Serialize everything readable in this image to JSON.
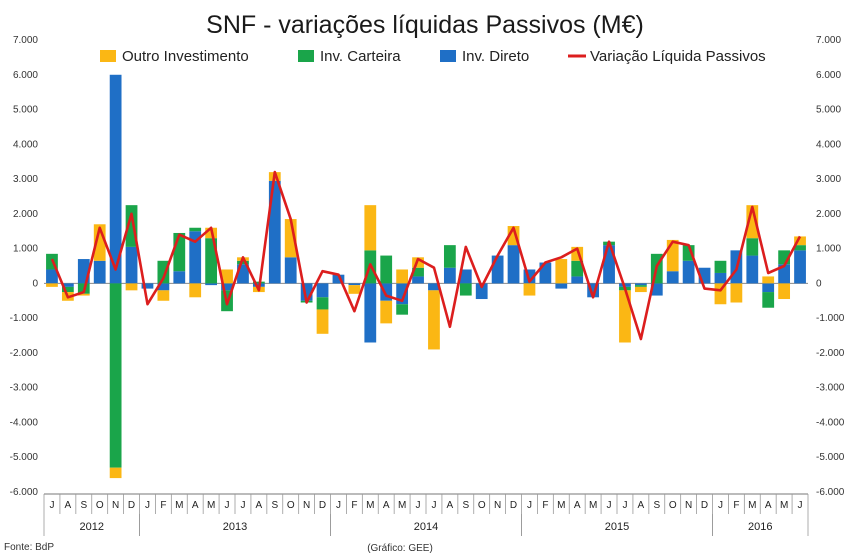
{
  "chart_data": {
    "type": "bar",
    "stacked": true,
    "title": "SNF - variações líquidas Passivos (M€)",
    "ylim": [
      -6000,
      7000
    ],
    "yticks": [
      7000,
      6000,
      5000,
      4000,
      3000,
      2000,
      1000,
      0,
      -1000,
      -2000,
      -3000,
      -4000,
      -5000,
      -6000
    ],
    "ytick_labels": [
      "7.000",
      "6.000",
      "5.000",
      "4.000",
      "3.000",
      "2.000",
      "1.000",
      "0",
      "-1.000",
      "-2.000",
      "-3.000",
      "-4.000",
      "-5.000",
      "-6.000"
    ],
    "categories": [
      "J",
      "A",
      "S",
      "O",
      "N",
      "D",
      "J",
      "F",
      "M",
      "A",
      "M",
      "J",
      "J",
      "A",
      "S",
      "O",
      "N",
      "D",
      "J",
      "F",
      "M",
      "A",
      "M",
      "J",
      "J",
      "A",
      "S",
      "O",
      "N",
      "D",
      "J",
      "F",
      "M",
      "A",
      "M",
      "J",
      "J",
      "A",
      "S",
      "O",
      "N",
      "D",
      "J",
      "F",
      "M",
      "A",
      "M",
      "J"
    ],
    "years": [
      {
        "label": "2012",
        "start": 0,
        "end": 5
      },
      {
        "label": "2013",
        "start": 6,
        "end": 17
      },
      {
        "label": "2014",
        "start": 18,
        "end": 29
      },
      {
        "label": "2015",
        "start": 30,
        "end": 41
      },
      {
        "label": "2016",
        "start": 42,
        "end": 47
      }
    ],
    "series": [
      {
        "name": "Inv. Direto",
        "kind": "bar",
        "color": "#1f6fc6",
        "values": [
          400,
          -100,
          700,
          650,
          6000,
          1050,
          -150,
          -200,
          350,
          1500,
          -50,
          -200,
          550,
          -100,
          2950,
          750,
          -500,
          -400,
          250,
          -50,
          -1700,
          -500,
          -600,
          200,
          -200,
          450,
          400,
          -450,
          800,
          1100,
          400,
          600,
          -150,
          200,
          -400,
          1100,
          -100,
          -50,
          -350,
          350,
          650,
          450,
          300,
          950,
          800,
          -250,
          550,
          950
        ]
      },
      {
        "name": "Inv. Carteira",
        "kind": "bar",
        "color": "#1aa54a",
        "values": [
          450,
          -150,
          -300,
          0,
          -5300,
          1200,
          0,
          650,
          1100,
          100,
          1300,
          -600,
          100,
          50,
          0,
          0,
          -50,
          -350,
          0,
          0,
          950,
          800,
          -300,
          250,
          0,
          650,
          -350,
          0,
          0,
          0,
          0,
          0,
          0,
          450,
          0,
          100,
          -100,
          -50,
          850,
          0,
          450,
          0,
          350,
          0,
          500,
          -450,
          400,
          150
        ]
      },
      {
        "name": "Outro Investimento",
        "kind": "bar",
        "color": "#fbb714",
        "values": [
          -100,
          -250,
          -50,
          1050,
          -300,
          -200,
          0,
          -300,
          0,
          -400,
          300,
          400,
          100,
          -150,
          250,
          1100,
          0,
          -700,
          0,
          -250,
          1300,
          -650,
          400,
          300,
          -1700,
          0,
          0,
          0,
          0,
          550,
          -350,
          0,
          700,
          400,
          0,
          0,
          -1500,
          -150,
          0,
          900,
          0,
          0,
          -600,
          -550,
          950,
          200,
          -450,
          250
        ]
      },
      {
        "name": "Variação Líquida Passivos",
        "kind": "line",
        "color": "#dc1e1e",
        "values": [
          700,
          -400,
          -250,
          1600,
          400,
          2000,
          -600,
          150,
          1400,
          1200,
          1600,
          -600,
          750,
          -200,
          3200,
          1850,
          -550,
          350,
          250,
          -800,
          550,
          -350,
          -500,
          700,
          450,
          -1250,
          1050,
          -100,
          800,
          1600,
          50,
          600,
          750,
          1000,
          -400,
          1200,
          -150,
          -1600,
          500,
          1200,
          1100,
          -150,
          -200,
          400,
          2200,
          300,
          500,
          1350
        ]
      }
    ]
  },
  "legend": [
    {
      "label": "Outro Investimento",
      "color": "#fbb714",
      "marker": "box"
    },
    {
      "label": "Inv. Carteira",
      "color": "#1aa54a",
      "marker": "box"
    },
    {
      "label": "Inv. Direto",
      "color": "#1f6fc6",
      "marker": "box"
    },
    {
      "label": "Variação Líquida Passivos",
      "color": "#dc1e1e",
      "marker": "line"
    }
  ],
  "footer": {
    "source": "Fonte: BdP",
    "credit": "(Gráfico: GEE)"
  }
}
